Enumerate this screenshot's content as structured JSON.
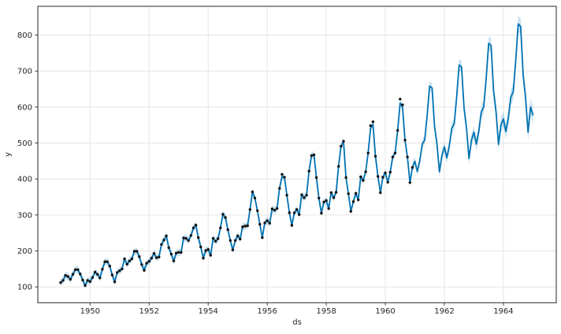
{
  "figure": {
    "background": "#ffffff"
  },
  "chart_data": {
    "type": "line",
    "title": "",
    "xlabel": "ds",
    "ylabel": "y",
    "xlim": [
      1948.23,
      1965.79
    ],
    "ylim": [
      56,
      880
    ],
    "xticks": [
      1950,
      1952,
      1954,
      1956,
      1958,
      1960,
      1962,
      1964
    ],
    "yticks": [
      100,
      200,
      300,
      400,
      500,
      600,
      700,
      800
    ],
    "grid": true,
    "legend": "none",
    "colors": {
      "forecast_line": "#0072B2",
      "uncertainty_band": "#0072B2",
      "uncertainty_band_opacity": 0.2,
      "observed_points": "#111111",
      "grid": "#e5e5e5",
      "spine": "#262626",
      "tick_label": "#262626"
    },
    "observed": {
      "name": "observed monthly passengers (black dots)",
      "start_year": 1949,
      "freq_per_year": 12,
      "values": [
        112,
        118,
        132,
        129,
        121,
        135,
        148,
        148,
        136,
        119,
        104,
        118,
        115,
        126,
        141,
        135,
        125,
        149,
        170,
        170,
        158,
        133,
        114,
        140,
        145,
        150,
        178,
        163,
        172,
        178,
        199,
        199,
        184,
        162,
        146,
        166,
        171,
        180,
        193,
        181,
        183,
        218,
        230,
        242,
        209,
        191,
        172,
        194,
        196,
        196,
        236,
        235,
        229,
        243,
        264,
        272,
        237,
        211,
        180,
        201,
        204,
        188,
        235,
        227,
        234,
        264,
        302,
        293,
        259,
        229,
        203,
        229,
        242,
        233,
        267,
        269,
        270,
        315,
        364,
        347,
        312,
        274,
        237,
        278,
        284,
        277,
        317,
        313,
        318,
        374,
        413,
        405,
        355,
        306,
        271,
        306,
        315,
        301,
        356,
        348,
        355,
        422,
        465,
        467,
        404,
        347,
        305,
        336,
        340,
        318,
        362,
        348,
        363,
        435,
        491,
        505,
        404,
        359,
        310,
        337,
        360,
        342,
        406,
        396,
        420,
        472,
        548,
        559,
        463,
        407,
        362,
        405,
        417,
        391,
        419,
        461,
        472,
        535,
        622,
        606,
        508,
        461,
        390,
        432
      ]
    },
    "forecast": {
      "name": "yhat fitted + forecast (blue line)",
      "start_year": 1949,
      "freq_per_year": 12,
      "values": [
        112,
        118,
        132,
        129,
        121,
        135,
        148,
        148,
        136,
        119,
        104,
        118,
        115,
        126,
        141,
        135,
        125,
        149,
        170,
        170,
        158,
        133,
        114,
        140,
        145,
        150,
        178,
        163,
        172,
        178,
        199,
        199,
        184,
        162,
        146,
        166,
        171,
        180,
        193,
        181,
        183,
        218,
        230,
        242,
        209,
        191,
        172,
        194,
        196,
        196,
        236,
        235,
        229,
        243,
        264,
        272,
        237,
        211,
        180,
        201,
        204,
        188,
        235,
        227,
        234,
        264,
        302,
        293,
        259,
        229,
        203,
        229,
        242,
        233,
        267,
        269,
        270,
        315,
        364,
        347,
        312,
        274,
        237,
        278,
        284,
        277,
        317,
        313,
        318,
        374,
        407,
        405,
        355,
        306,
        271,
        306,
        315,
        301,
        356,
        348,
        355,
        422,
        465,
        467,
        404,
        347,
        305,
        336,
        340,
        318,
        362,
        348,
        363,
        435,
        491,
        505,
        404,
        359,
        310,
        337,
        360,
        342,
        406,
        396,
        420,
        472,
        541,
        552,
        463,
        407,
        362,
        405,
        417,
        391,
        419,
        461,
        472,
        535,
        611,
        600,
        508,
        461,
        390,
        432,
        449,
        421,
        451,
        497,
        508,
        576,
        658,
        653,
        547,
        497,
        420,
        465,
        489,
        459,
        491,
        541,
        554,
        628,
        717,
        711,
        596,
        541,
        457,
        507,
        530,
        497,
        533,
        586,
        600,
        681,
        777,
        771,
        646,
        586,
        496,
        550,
        567,
        532,
        570,
        627,
        642,
        728,
        831,
        824,
        691,
        627,
        530,
        600,
        578
      ],
      "uncertainty": {
        "history_points": 144,
        "history_halfwidth": 10,
        "future_halfwidth_start": 12,
        "future_halfwidth_end": 24
      }
    }
  }
}
